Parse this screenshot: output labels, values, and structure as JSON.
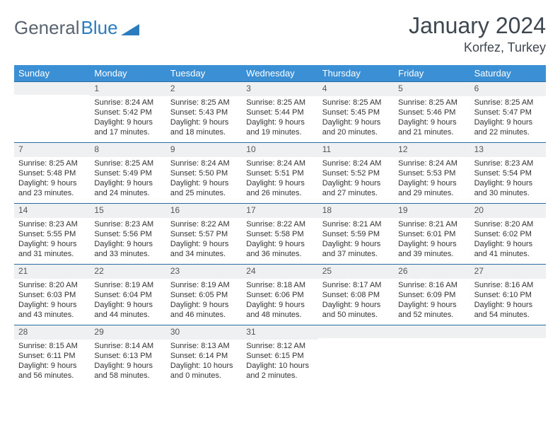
{
  "brand": {
    "part1": "General",
    "part2": "Blue"
  },
  "title": "January 2024",
  "location": "Korfez, Turkey",
  "colors": {
    "header_bg": "#3b8fd4",
    "header_text": "#ffffff",
    "rule": "#2b6ca5",
    "daynum_bg": "#eef0f2",
    "text": "#333333",
    "brand_gray": "#5a6470",
    "brand_blue": "#2b7bbf"
  },
  "weekdays": [
    "Sunday",
    "Monday",
    "Tuesday",
    "Wednesday",
    "Thursday",
    "Friday",
    "Saturday"
  ],
  "start_offset": 1,
  "days": [
    {
      "n": 1,
      "sr": "8:24 AM",
      "ss": "5:42 PM",
      "dl": "9 hours and 17 minutes."
    },
    {
      "n": 2,
      "sr": "8:25 AM",
      "ss": "5:43 PM",
      "dl": "9 hours and 18 minutes."
    },
    {
      "n": 3,
      "sr": "8:25 AM",
      "ss": "5:44 PM",
      "dl": "9 hours and 19 minutes."
    },
    {
      "n": 4,
      "sr": "8:25 AM",
      "ss": "5:45 PM",
      "dl": "9 hours and 20 minutes."
    },
    {
      "n": 5,
      "sr": "8:25 AM",
      "ss": "5:46 PM",
      "dl": "9 hours and 21 minutes."
    },
    {
      "n": 6,
      "sr": "8:25 AM",
      "ss": "5:47 PM",
      "dl": "9 hours and 22 minutes."
    },
    {
      "n": 7,
      "sr": "8:25 AM",
      "ss": "5:48 PM",
      "dl": "9 hours and 23 minutes."
    },
    {
      "n": 8,
      "sr": "8:25 AM",
      "ss": "5:49 PM",
      "dl": "9 hours and 24 minutes."
    },
    {
      "n": 9,
      "sr": "8:24 AM",
      "ss": "5:50 PM",
      "dl": "9 hours and 25 minutes."
    },
    {
      "n": 10,
      "sr": "8:24 AM",
      "ss": "5:51 PM",
      "dl": "9 hours and 26 minutes."
    },
    {
      "n": 11,
      "sr": "8:24 AM",
      "ss": "5:52 PM",
      "dl": "9 hours and 27 minutes."
    },
    {
      "n": 12,
      "sr": "8:24 AM",
      "ss": "5:53 PM",
      "dl": "9 hours and 29 minutes."
    },
    {
      "n": 13,
      "sr": "8:23 AM",
      "ss": "5:54 PM",
      "dl": "9 hours and 30 minutes."
    },
    {
      "n": 14,
      "sr": "8:23 AM",
      "ss": "5:55 PM",
      "dl": "9 hours and 31 minutes."
    },
    {
      "n": 15,
      "sr": "8:23 AM",
      "ss": "5:56 PM",
      "dl": "9 hours and 33 minutes."
    },
    {
      "n": 16,
      "sr": "8:22 AM",
      "ss": "5:57 PM",
      "dl": "9 hours and 34 minutes."
    },
    {
      "n": 17,
      "sr": "8:22 AM",
      "ss": "5:58 PM",
      "dl": "9 hours and 36 minutes."
    },
    {
      "n": 18,
      "sr": "8:21 AM",
      "ss": "5:59 PM",
      "dl": "9 hours and 37 minutes."
    },
    {
      "n": 19,
      "sr": "8:21 AM",
      "ss": "6:01 PM",
      "dl": "9 hours and 39 minutes."
    },
    {
      "n": 20,
      "sr": "8:20 AM",
      "ss": "6:02 PM",
      "dl": "9 hours and 41 minutes."
    },
    {
      "n": 21,
      "sr": "8:20 AM",
      "ss": "6:03 PM",
      "dl": "9 hours and 43 minutes."
    },
    {
      "n": 22,
      "sr": "8:19 AM",
      "ss": "6:04 PM",
      "dl": "9 hours and 44 minutes."
    },
    {
      "n": 23,
      "sr": "8:19 AM",
      "ss": "6:05 PM",
      "dl": "9 hours and 46 minutes."
    },
    {
      "n": 24,
      "sr": "8:18 AM",
      "ss": "6:06 PM",
      "dl": "9 hours and 48 minutes."
    },
    {
      "n": 25,
      "sr": "8:17 AM",
      "ss": "6:08 PM",
      "dl": "9 hours and 50 minutes."
    },
    {
      "n": 26,
      "sr": "8:16 AM",
      "ss": "6:09 PM",
      "dl": "9 hours and 52 minutes."
    },
    {
      "n": 27,
      "sr": "8:16 AM",
      "ss": "6:10 PM",
      "dl": "9 hours and 54 minutes."
    },
    {
      "n": 28,
      "sr": "8:15 AM",
      "ss": "6:11 PM",
      "dl": "9 hours and 56 minutes."
    },
    {
      "n": 29,
      "sr": "8:14 AM",
      "ss": "6:13 PM",
      "dl": "9 hours and 58 minutes."
    },
    {
      "n": 30,
      "sr": "8:13 AM",
      "ss": "6:14 PM",
      "dl": "10 hours and 0 minutes."
    },
    {
      "n": 31,
      "sr": "8:12 AM",
      "ss": "6:15 PM",
      "dl": "10 hours and 2 minutes."
    }
  ],
  "labels": {
    "sunrise": "Sunrise:",
    "sunset": "Sunset:",
    "daylight": "Daylight:"
  }
}
